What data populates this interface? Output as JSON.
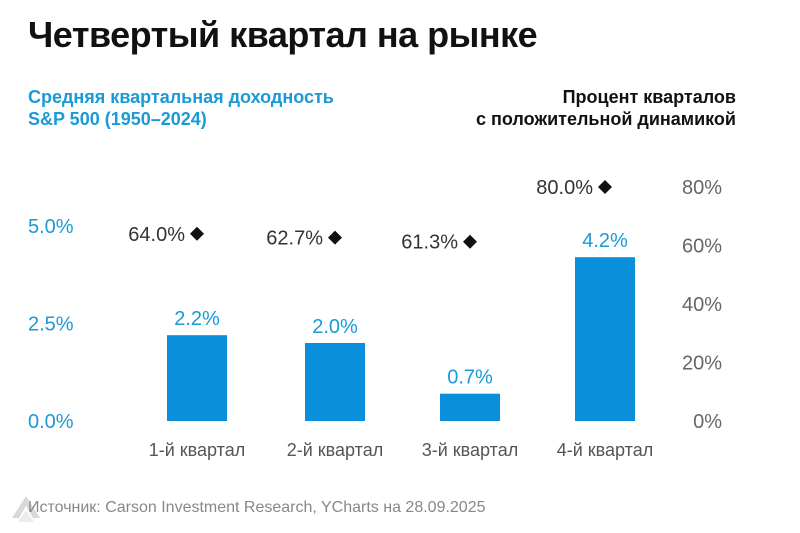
{
  "title": "Четвертый квартал на рынке",
  "subtitle_left": [
    "Средняя квартальная доходность",
    "S&P 500 (1950–2024)"
  ],
  "subtitle_right": [
    "Процент кварталов",
    "с положительной динамикой"
  ],
  "source": "Источник: Carson Investment Research, YCharts на 28.09.2025",
  "colors": {
    "bar": "#0a8fdb",
    "accent_text": "#1a9ad6",
    "axis_text": "#666666",
    "marker": "#111111"
  },
  "chart_data": {
    "type": "bar",
    "categories": [
      "1-й квартал",
      "2-й квартал",
      "3-й квартал",
      "4-й квартал"
    ],
    "series": [
      {
        "name": "Средняя квартальная доходность S&P 500 (1950–2024)",
        "values": [
          2.2,
          2.0,
          0.7,
          4.2
        ],
        "axis": "left",
        "labels": [
          "2.2%",
          "2.0%",
          "0.7%",
          "4.2%"
        ]
      },
      {
        "name": "Процент кварталов с положительной динамикой",
        "values": [
          64.0,
          62.7,
          61.3,
          80.0
        ],
        "axis": "right",
        "mark": "diamond",
        "labels": [
          "64.0%",
          "62.7%",
          "61.3%",
          "80.0%"
        ]
      }
    ],
    "left_axis": {
      "ylim": [
        0,
        5
      ],
      "ticks": [
        0,
        2.5,
        5
      ],
      "tick_labels": [
        "0.0%",
        "2.5%",
        "5.0%"
      ]
    },
    "right_axis": {
      "ylim": [
        0,
        80
      ],
      "ticks": [
        0,
        20,
        40,
        60,
        80
      ],
      "tick_labels": [
        "0%",
        "20%",
        "40%",
        "60%",
        "80%"
      ]
    },
    "grid": false
  }
}
